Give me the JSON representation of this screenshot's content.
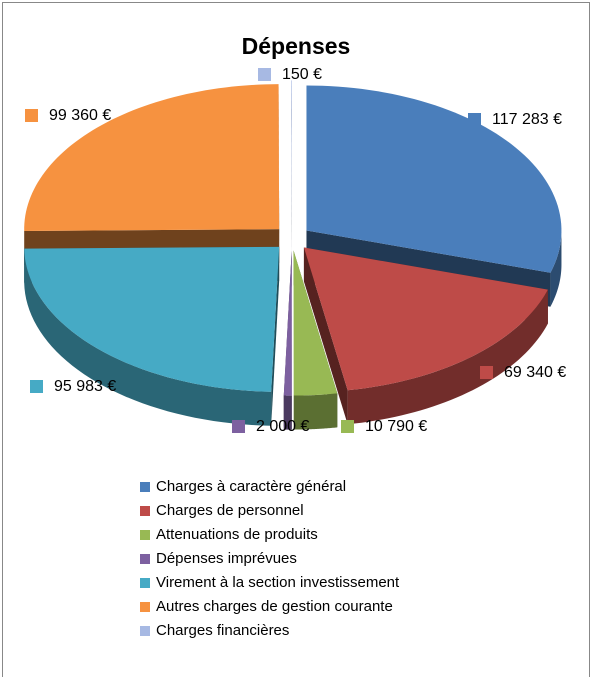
{
  "chart_data": {
    "type": "pie",
    "title": "Dépenses",
    "categories": [
      "Charges à caractère général",
      "Charges de personnel",
      "Attenuations de produits",
      "Dépenses imprévues",
      "Virement à la section investissement",
      "Autres charges de gestion courante",
      "Charges financières"
    ],
    "values": [
      117283,
      69340,
      10790,
      2000,
      95983,
      99360,
      150
    ],
    "value_labels": [
      "117 283 €",
      "69 340 €",
      "10 790 €",
      "2 000 €",
      "95 983 €",
      "99 360 €",
      "150 €"
    ],
    "colors": [
      "#4a7ebb",
      "#be4b48",
      "#98b954",
      "#7d60a0",
      "#46aac5",
      "#f69240",
      "#a7b9e3"
    ],
    "legend": "bottom"
  }
}
